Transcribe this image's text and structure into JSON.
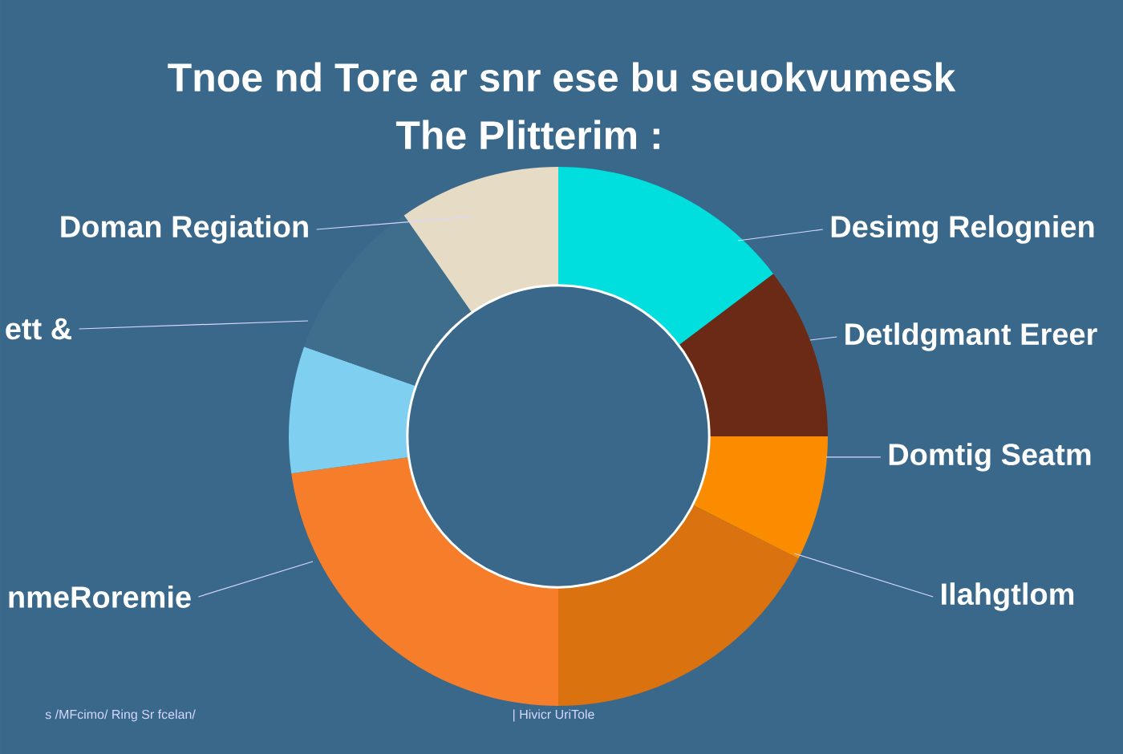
{
  "chart_data": {
    "type": "donut",
    "title": "Tnoe nd Tore ar snr ese bu seuokvumesk",
    "subtitle": "The Plitterim :",
    "categories": [
      "Desimg Relognien",
      "Detldgmant Ereer",
      "Domtig Seatm",
      "Ilahgtlom",
      "nmeRoremie",
      null,
      "ett &",
      "Doman Regiation"
    ],
    "values": [
      14.7,
      10.3,
      7.5,
      17.5,
      22.8,
      7.6,
      9.9,
      9.7
    ],
    "colors": [
      "#00dede",
      "#6b2a16",
      "#fb8c00",
      "#d9720f",
      "#f67d2a",
      "#7fd0f0",
      "#3f6e8d",
      "#e6dcc5"
    ],
    "annotations": [
      "s /MFcimo/ Ring Sr fcelan/",
      "| Hivicr UriTole"
    ]
  }
}
